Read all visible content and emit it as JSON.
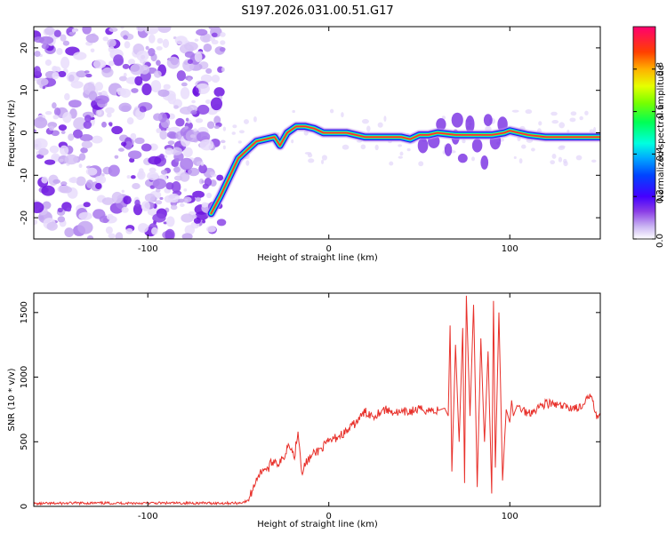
{
  "title": "S197.2026.031.00.51.G17",
  "chart_data": [
    {
      "type": "heatmap",
      "name": "spectrogram",
      "xlabel": "Height of straight line (km)",
      "ylabel": "Frequency (Hz)",
      "xlim": [
        -163,
        150
      ],
      "ylim": [
        -25,
        25
      ],
      "xticks": [
        -100,
        0,
        100
      ],
      "xtick_labels": [
        "-100",
        "0",
        "100"
      ],
      "yticks": [
        -20,
        -10,
        0,
        10,
        20
      ],
      "ytick_labels": [
        "-20",
        "-10",
        "0",
        "10",
        "20"
      ],
      "ridge": {
        "x": [
          -65,
          -60,
          -50,
          -45,
          -40,
          -35,
          -30,
          -27,
          -23,
          -18,
          -13,
          -8,
          -3,
          0,
          10,
          20,
          30,
          40,
          45,
          50,
          55,
          60,
          70,
          80,
          90,
          97,
          100,
          110,
          120,
          150
        ],
        "y": [
          -19,
          -15,
          -6,
          -4,
          -2,
          -1.5,
          -1,
          -3,
          0,
          1.5,
          1.5,
          1,
          0,
          0,
          0,
          -1,
          -1,
          -1,
          -1.5,
          -0.5,
          -0.5,
          0,
          -0.5,
          -0.5,
          -0.5,
          0,
          0.5,
          -0.5,
          -1,
          -1
        ]
      },
      "noise_region_x": [
        -163,
        -60
      ],
      "colorbar": {
        "label": "Normalized spectral amplitude",
        "range": [
          0,
          1
        ],
        "ticks": [
          0.0,
          0.2,
          0.4,
          0.6,
          0.8
        ],
        "tick_labels": [
          "0.0",
          "0.2",
          "0.4",
          "0.6",
          "0.8"
        ]
      }
    },
    {
      "type": "line",
      "name": "snr",
      "xlabel": "Height of straight line (km)",
      "ylabel": "SNR (10 * v/v)",
      "xlim": [
        -163,
        150
      ],
      "ylim": [
        0,
        1650
      ],
      "xticks": [
        -100,
        0,
        100
      ],
      "xtick_labels": [
        "-100",
        "0",
        "100"
      ],
      "yticks": [
        0,
        500,
        1000,
        1500
      ],
      "ytick_labels": [
        "0",
        "500",
        "1000",
        "1500"
      ],
      "color": "#e8302a",
      "x": [
        -163,
        -140,
        -120,
        -100,
        -80,
        -60,
        -50,
        -45,
        -42,
        -40,
        -38,
        -36,
        -34,
        -32,
        -30,
        -28,
        -25,
        -22,
        -19,
        -17,
        -15,
        -12,
        -8,
        -4,
        0,
        5,
        10,
        15,
        20,
        25,
        30,
        40,
        50,
        60,
        64,
        66,
        67,
        68,
        70,
        72,
        74,
        75,
        76,
        78,
        80,
        82,
        84,
        86,
        88,
        90,
        91,
        92,
        94,
        96,
        98,
        100,
        101,
        102,
        104,
        106,
        110,
        120,
        130,
        140,
        145,
        148,
        150
      ],
      "y": [
        20,
        25,
        25,
        25,
        25,
        25,
        25,
        40,
        130,
        220,
        250,
        300,
        280,
        330,
        360,
        330,
        370,
        500,
        380,
        600,
        270,
        350,
        410,
        450,
        500,
        540,
        580,
        650,
        730,
        700,
        750,
        720,
        750,
        740,
        760,
        700,
        1400,
        270,
        1250,
        500,
        1380,
        180,
        1630,
        700,
        1560,
        150,
        1300,
        500,
        1200,
        100,
        1590,
        300,
        1500,
        200,
        750,
        650,
        820,
        700,
        780,
        760,
        720,
        800,
        770,
        760,
        880,
        700,
        700
      ]
    }
  ]
}
